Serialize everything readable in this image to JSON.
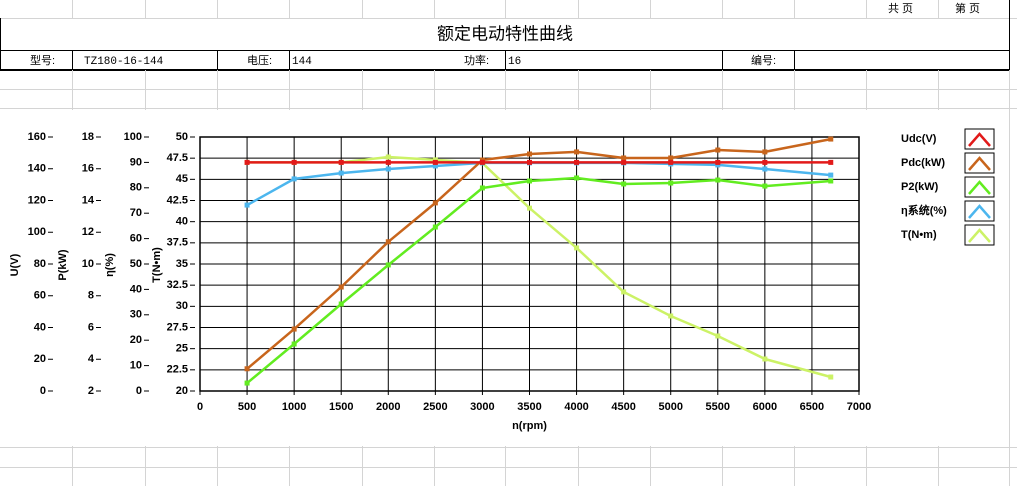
{
  "sheet": {
    "total_pages": "共  页",
    "page_no": "第  页",
    "model_label": "型号:",
    "model": "TZ180-16-144",
    "voltage_label": "电压:",
    "voltage": "144",
    "power_label": "功率:",
    "power": "16",
    "serial_label": "编号:"
  },
  "chart_data": {
    "type": "line",
    "title": "额定电动特性曲线",
    "x": [
      500,
      1000,
      1500,
      2000,
      2500,
      3000,
      3500,
      4000,
      4500,
      5000,
      5500,
      6000,
      6700
    ],
    "xlim": [
      0,
      7000
    ],
    "xticks": [
      0,
      500,
      1000,
      1500,
      2000,
      2500,
      3000,
      3500,
      4000,
      4500,
      5000,
      5500,
      6000,
      6500,
      7000
    ],
    "xlabel": "n(rpm)",
    "grid": true,
    "y_axes": [
      {
        "label": "U(V)",
        "lim": [
          0,
          160
        ],
        "ticks": [
          0,
          20,
          40,
          60,
          80,
          100,
          120,
          140,
          160
        ]
      },
      {
        "label": "P(kW)",
        "lim": [
          2,
          18
        ],
        "ticks": [
          2,
          4,
          6,
          8,
          10,
          12,
          14,
          16,
          18
        ]
      },
      {
        "label": "η(%)",
        "lim": [
          0,
          100
        ],
        "ticks": [
          0,
          10,
          20,
          30,
          40,
          50,
          60,
          70,
          80,
          90,
          100
        ]
      },
      {
        "label": "T(N•m)",
        "lim": [
          20,
          50
        ],
        "ticks": [
          20,
          22.5,
          25,
          27.5,
          30,
          32.5,
          35,
          37.5,
          40,
          42.5,
          45,
          47.5,
          50
        ]
      }
    ],
    "series": [
      {
        "name": "Udc(V)",
        "color": "#e21a1a",
        "axis": 0,
        "values": [
          144,
          144,
          144,
          144,
          144,
          144,
          144,
          144,
          144,
          144,
          144,
          144,
          144
        ]
      },
      {
        "name": "Pdc(kW)",
        "color": "#c8651c",
        "axis": 1,
        "values": [
          3.4,
          5.9,
          8.55,
          11.4,
          13.85,
          16.55,
          16.93,
          17.06,
          16.68,
          16.68,
          17.18,
          17.06,
          17.87
        ]
      },
      {
        "name": "P2(kW)",
        "color": "#62ec20",
        "axis": 1,
        "values": [
          2.5,
          4.96,
          7.48,
          9.94,
          12.33,
          14.79,
          15.23,
          15.42,
          15.04,
          15.1,
          15.29,
          14.91,
          15.23
        ]
      },
      {
        "name": "η系统(%)",
        "color": "#4cb6ee",
        "axis": 2,
        "values": [
          73.2,
          83.5,
          85.8,
          87.4,
          88.6,
          89.8,
          89.8,
          89.8,
          89.8,
          89.4,
          89.0,
          87.4,
          85.0
        ]
      },
      {
        "name": "T(N•m)",
        "color": "#ccf266",
        "axis": 3,
        "values": [
          47.0,
          47.0,
          47.0,
          47.64,
          47.3,
          46.93,
          41.6,
          36.9,
          31.7,
          28.86,
          26.5,
          23.78,
          21.65
        ]
      }
    ]
  }
}
